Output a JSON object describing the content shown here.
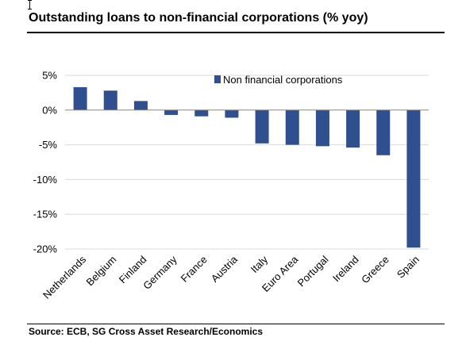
{
  "header": {
    "title": "Outstanding loans to non-financial corporations (% yoy)"
  },
  "footer": {
    "source": "Source: ECB, SG Cross Asset Research/Economics"
  },
  "colors": {
    "bar": "#2f4f8f",
    "grid": "#d9d9d9",
    "axis": "#888888"
  },
  "chart_data": {
    "type": "bar",
    "title": "Outstanding loans to non-financial corporations (% yoy)",
    "xlabel": "",
    "ylabel": "",
    "ylim": [
      -20,
      5
    ],
    "yticks": [
      5,
      0,
      -5,
      -10,
      -15,
      -20
    ],
    "ytick_labels": [
      "5%",
      "0%",
      "-5%",
      "-10%",
      "-15%",
      "-20%"
    ],
    "grid": true,
    "legend_position": "top-right",
    "categories": [
      "Netherlands",
      "Belgium",
      "Finland",
      "Germany",
      "France",
      "Austria",
      "Italy",
      "Euro Area",
      "Portugal",
      "Ireland",
      "Greece",
      "Spain"
    ],
    "series": [
      {
        "name": "Non financial corporations",
        "values": [
          3.3,
          2.8,
          1.3,
          -0.7,
          -0.9,
          -1.1,
          -4.8,
          -5.0,
          -5.2,
          -5.4,
          -6.5,
          -19.8
        ]
      }
    ]
  }
}
